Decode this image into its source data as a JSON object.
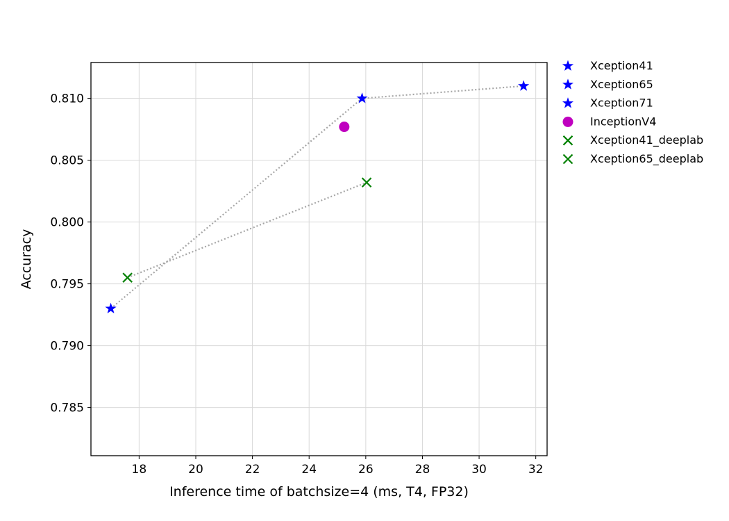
{
  "chart_data": {
    "type": "scatter",
    "title": "",
    "xlabel": "Inference time of batchsize=4 (ms, T4, FP32)",
    "ylabel": "Accuracy",
    "xlim": [
      16.3,
      32.4
    ],
    "ylim": [
      0.7811,
      0.8129
    ],
    "xticks": [
      18,
      20,
      22,
      24,
      26,
      28,
      30,
      32
    ],
    "yticks": [
      0.785,
      0.79,
      0.795,
      0.8,
      0.805,
      0.81
    ],
    "xtick_labels": [
      "18",
      "20",
      "22",
      "24",
      "26",
      "28",
      "30",
      "32"
    ],
    "ytick_labels": [
      "0.785",
      "0.790",
      "0.795",
      "0.800",
      "0.805",
      "0.810"
    ],
    "grid": true,
    "legend_position": "outside-right-top",
    "series": [
      {
        "name": "Xception41",
        "marker": "star",
        "color": "#0000ff",
        "x": [
          17.0
        ],
        "y": [
          0.793
        ]
      },
      {
        "name": "Xception65",
        "marker": "star",
        "color": "#0000ff",
        "x": [
          25.87
        ],
        "y": [
          0.81
        ]
      },
      {
        "name": "Xception71",
        "marker": "star",
        "color": "#0000ff",
        "x": [
          31.57
        ],
        "y": [
          0.811
        ]
      },
      {
        "name": "InceptionV4",
        "marker": "circle",
        "color": "#bf00bf",
        "x": [
          25.24
        ],
        "y": [
          0.8077
        ]
      },
      {
        "name": "Xception41_deeplab",
        "marker": "x",
        "color": "#008000",
        "x": [
          17.59
        ],
        "y": [
          0.7955
        ]
      },
      {
        "name": "Xception65_deeplab",
        "marker": "x",
        "color": "#008000",
        "x": [
          26.03
        ],
        "y": [
          0.8032
        ]
      }
    ],
    "connector_lines": [
      {
        "color": "#a6a6a6",
        "style": "dotted",
        "points": [
          [
            17.0,
            0.793
          ],
          [
            25.87,
            0.81
          ],
          [
            31.57,
            0.811
          ]
        ]
      },
      {
        "color": "#a6a6a6",
        "style": "dotted",
        "points": [
          [
            17.59,
            0.7955
          ],
          [
            26.03,
            0.8032
          ]
        ]
      }
    ]
  }
}
